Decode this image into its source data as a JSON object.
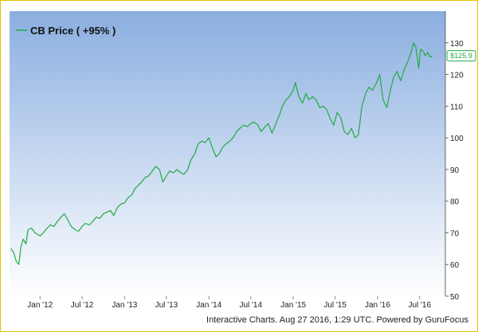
{
  "chart_data": {
    "type": "line",
    "legend": {
      "label": "CB Price ( +95% )",
      "placement": "top-left"
    },
    "series": [
      {
        "name": "CB Price ( +95% )",
        "color": "#22aa44",
        "points": [
          [
            "2011-08-29",
            65.0
          ],
          [
            "2011-09-10",
            63.5
          ],
          [
            "2011-09-20",
            61.0
          ],
          [
            "2011-10-01",
            60.0
          ],
          [
            "2011-10-10",
            65.5
          ],
          [
            "2011-10-20",
            68.0
          ],
          [
            "2011-11-01",
            66.5
          ],
          [
            "2011-11-10",
            71.0
          ],
          [
            "2011-11-25",
            71.5
          ],
          [
            "2011-12-10",
            70.0
          ],
          [
            "2012-01-01",
            69.0
          ],
          [
            "2012-01-15",
            70.0
          ],
          [
            "2012-02-01",
            71.5
          ],
          [
            "2012-02-15",
            72.5
          ],
          [
            "2012-03-01",
            72.0
          ],
          [
            "2012-03-15",
            73.5
          ],
          [
            "2012-04-01",
            75.0
          ],
          [
            "2012-04-15",
            76.0
          ],
          [
            "2012-05-01",
            74.0
          ],
          [
            "2012-05-15",
            72.0
          ],
          [
            "2012-06-01",
            71.0
          ],
          [
            "2012-06-15",
            70.5
          ],
          [
            "2012-07-01",
            72.0
          ],
          [
            "2012-07-15",
            73.0
          ],
          [
            "2012-08-01",
            72.5
          ],
          [
            "2012-08-15",
            73.5
          ],
          [
            "2012-09-01",
            75.0
          ],
          [
            "2012-09-15",
            74.5
          ],
          [
            "2012-10-01",
            76.0
          ],
          [
            "2012-10-15",
            76.5
          ],
          [
            "2012-11-01",
            77.0
          ],
          [
            "2012-11-15",
            75.5
          ],
          [
            "2012-12-01",
            78.0
          ],
          [
            "2012-12-15",
            79.0
          ],
          [
            "2013-01-01",
            79.5
          ],
          [
            "2013-01-15",
            81.0
          ],
          [
            "2013-02-01",
            82.0
          ],
          [
            "2013-02-15",
            84.0
          ],
          [
            "2013-03-01",
            85.0
          ],
          [
            "2013-03-15",
            86.0
          ],
          [
            "2013-04-01",
            87.5
          ],
          [
            "2013-04-15",
            88.0
          ],
          [
            "2013-05-01",
            89.5
          ],
          [
            "2013-05-15",
            91.0
          ],
          [
            "2013-06-01",
            90.0
          ],
          [
            "2013-06-15",
            86.0
          ],
          [
            "2013-07-01",
            88.0
          ],
          [
            "2013-07-15",
            89.5
          ],
          [
            "2013-08-01",
            89.0
          ],
          [
            "2013-08-15",
            90.0
          ],
          [
            "2013-09-01",
            89.0
          ],
          [
            "2013-09-15",
            88.5
          ],
          [
            "2013-10-01",
            90.0
          ],
          [
            "2013-10-15",
            93.0
          ],
          [
            "2013-11-01",
            95.0
          ],
          [
            "2013-11-15",
            98.0
          ],
          [
            "2013-12-01",
            99.0
          ],
          [
            "2013-12-15",
            98.5
          ],
          [
            "2014-01-01",
            100.0
          ],
          [
            "2014-01-15",
            97.0
          ],
          [
            "2014-02-01",
            94.0
          ],
          [
            "2014-02-15",
            95.0
          ],
          [
            "2014-03-01",
            97.0
          ],
          [
            "2014-03-15",
            98.0
          ],
          [
            "2014-04-01",
            99.0
          ],
          [
            "2014-04-15",
            100.0
          ],
          [
            "2014-05-01",
            102.0
          ],
          [
            "2014-05-15",
            103.0
          ],
          [
            "2014-06-01",
            104.0
          ],
          [
            "2014-06-15",
            103.5
          ],
          [
            "2014-07-01",
            104.5
          ],
          [
            "2014-07-15",
            105.0
          ],
          [
            "2014-08-01",
            104.0
          ],
          [
            "2014-08-15",
            102.0
          ],
          [
            "2014-09-01",
            103.5
          ],
          [
            "2014-09-15",
            104.5
          ],
          [
            "2014-10-01",
            101.5
          ],
          [
            "2014-10-15",
            104.0
          ],
          [
            "2014-11-01",
            107.0
          ],
          [
            "2014-11-15",
            110.0
          ],
          [
            "2014-12-01",
            112.0
          ],
          [
            "2014-12-15",
            113.0
          ],
          [
            "2015-01-01",
            115.0
          ],
          [
            "2015-01-10",
            117.5
          ],
          [
            "2015-01-25",
            113.0
          ],
          [
            "2015-02-10",
            111.0
          ],
          [
            "2015-02-25",
            114.0
          ],
          [
            "2015-03-10",
            112.0
          ],
          [
            "2015-03-25",
            113.0
          ],
          [
            "2015-04-10",
            112.0
          ],
          [
            "2015-04-25",
            109.5
          ],
          [
            "2015-05-10",
            110.0
          ],
          [
            "2015-05-25",
            109.0
          ],
          [
            "2015-06-10",
            106.0
          ],
          [
            "2015-06-25",
            104.0
          ],
          [
            "2015-07-10",
            108.0
          ],
          [
            "2015-07-25",
            106.5
          ],
          [
            "2015-08-10",
            102.0
          ],
          [
            "2015-08-25",
            101.0
          ],
          [
            "2015-09-10",
            103.0
          ],
          [
            "2015-09-25",
            100.0
          ],
          [
            "2015-10-10",
            101.0
          ],
          [
            "2015-10-25",
            110.0
          ],
          [
            "2015-11-10",
            114.0
          ],
          [
            "2015-11-25",
            116.0
          ],
          [
            "2015-12-10",
            115.0
          ],
          [
            "2015-12-25",
            117.0
          ],
          [
            "2016-01-10",
            120.0
          ],
          [
            "2016-01-25",
            112.0
          ],
          [
            "2016-02-10",
            109.5
          ],
          [
            "2016-02-25",
            115.0
          ],
          [
            "2016-03-10",
            119.0
          ],
          [
            "2016-03-25",
            121.0
          ],
          [
            "2016-04-10",
            118.0
          ],
          [
            "2016-04-25",
            121.5
          ],
          [
            "2016-05-10",
            124.0
          ],
          [
            "2016-05-25",
            127.0
          ],
          [
            "2016-06-05",
            130.0
          ],
          [
            "2016-06-15",
            128.5
          ],
          [
            "2016-06-27",
            122.0
          ],
          [
            "2016-07-05",
            128.0
          ],
          [
            "2016-07-15",
            127.5
          ],
          [
            "2016-07-25",
            126.0
          ],
          [
            "2016-08-05",
            127.0
          ],
          [
            "2016-08-15",
            125.5
          ],
          [
            "2016-08-26",
            125.9
          ]
        ]
      }
    ],
    "x_range": [
      "2011-08-29",
      "2016-08-26"
    ],
    "x_ticks": [
      {
        "date": "2012-01-01",
        "label": "Jan '12"
      },
      {
        "date": "2012-07-01",
        "label": "Jul '12"
      },
      {
        "date": "2013-01-01",
        "label": "Jan '13"
      },
      {
        "date": "2013-07-01",
        "label": "Jul '13"
      },
      {
        "date": "2014-01-01",
        "label": "Jan '14"
      },
      {
        "date": "2014-07-01",
        "label": "Jul '14"
      },
      {
        "date": "2015-01-01",
        "label": "Jan '15"
      },
      {
        "date": "2015-07-01",
        "label": "Jul '15"
      },
      {
        "date": "2016-01-01",
        "label": "Jan '16"
      },
      {
        "date": "2016-07-01",
        "label": "Jul '16"
      }
    ],
    "y_axis": {
      "position": "right",
      "ylim": [
        50,
        140
      ],
      "ticks": [
        50,
        60,
        70,
        80,
        90,
        100,
        110,
        120,
        130
      ]
    },
    "last_value": {
      "value": 125.9,
      "label": "$125.9"
    },
    "grid": false,
    "colors": {
      "bg_top": "#8aaee0",
      "bg_bottom": "#ffffff",
      "line": "#22aa44",
      "frame": "#e8c200"
    }
  },
  "footer": {
    "credit": "Interactive Charts. Aug 27 2016, 1:29 UTC. Powered by GuruFocus"
  }
}
